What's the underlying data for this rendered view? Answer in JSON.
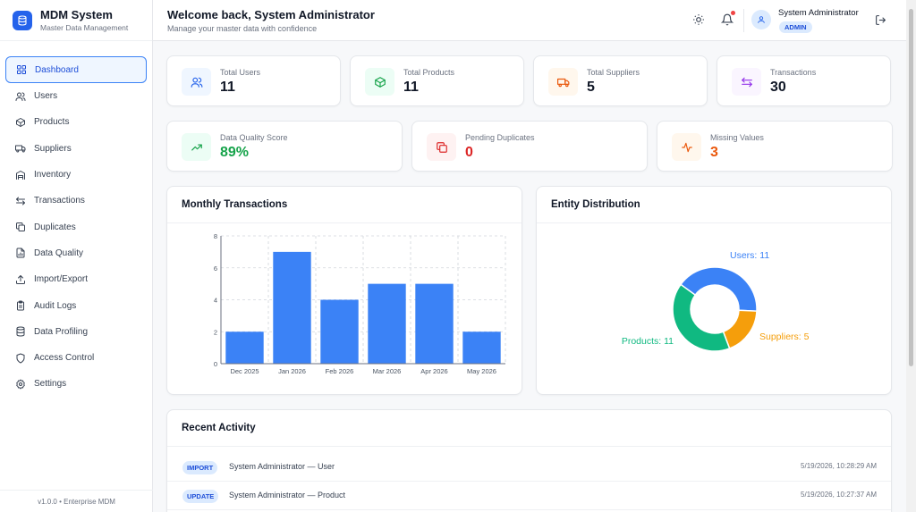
{
  "brand": {
    "title": "MDM System",
    "subtitle": "Master Data Management"
  },
  "nav": [
    {
      "label": "Dashboard",
      "icon": "grid-icon",
      "active": true
    },
    {
      "label": "Users",
      "icon": "users-icon"
    },
    {
      "label": "Products",
      "icon": "box-icon"
    },
    {
      "label": "Suppliers",
      "icon": "truck-icon"
    },
    {
      "label": "Inventory",
      "icon": "warehouse-icon"
    },
    {
      "label": "Transactions",
      "icon": "arrows-icon"
    },
    {
      "label": "Duplicates",
      "icon": "copy-icon"
    },
    {
      "label": "Data Quality",
      "icon": "file-chart-icon"
    },
    {
      "label": "Import/Export",
      "icon": "upload-icon"
    },
    {
      "label": "Audit Logs",
      "icon": "clipboard-icon"
    },
    {
      "label": "Data Profiling",
      "icon": "database-icon"
    },
    {
      "label": "Access Control",
      "icon": "shield-icon"
    },
    {
      "label": "Settings",
      "icon": "gear-icon"
    }
  ],
  "version": "v1.0.0 • Enterprise MDM",
  "header": {
    "title": "Welcome back, System Administrator",
    "subtitle": "Manage your master data with confidence",
    "user_name": "System Administrator",
    "role": "ADMIN"
  },
  "stats_row1": [
    {
      "label": "Total Users",
      "value": "11",
      "icon": "users-icon",
      "color": "#2563eb",
      "bg": "#eff6ff"
    },
    {
      "label": "Total Products",
      "value": "11",
      "icon": "box-icon",
      "color": "#16a34a",
      "bg": "#ecfdf5"
    },
    {
      "label": "Total Suppliers",
      "value": "5",
      "icon": "truck-icon",
      "color": "#ea580c",
      "bg": "#fff7ed"
    },
    {
      "label": "Transactions",
      "value": "30",
      "icon": "arrows-icon",
      "color": "#9333ea",
      "bg": "#faf5ff"
    }
  ],
  "stats_row2": [
    {
      "label": "Data Quality Score",
      "value": "89%",
      "icon": "trend-up-icon",
      "color": "#16a34a",
      "bg": "#ecfdf5",
      "value_color": "#16a34a"
    },
    {
      "label": "Pending Duplicates",
      "value": "0",
      "icon": "copy-icon",
      "color": "#dc2626",
      "bg": "#fef2f2",
      "value_color": "#dc2626"
    },
    {
      "label": "Missing Values",
      "value": "3",
      "icon": "activity-icon",
      "color": "#ea580c",
      "bg": "#fff7ed",
      "value_color": "#ea580c"
    }
  ],
  "monthly": {
    "title": "Monthly Transactions"
  },
  "distribution": {
    "title": "Entity Distribution"
  },
  "activity": {
    "title": "Recent Activity",
    "rows": [
      {
        "action": "IMPORT",
        "text": "System Administrator — User",
        "time": "5/19/2026, 10:28:29 AM"
      },
      {
        "action": "UPDATE",
        "text": "System Administrator — Product",
        "time": "5/19/2026, 10:27:37 AM"
      }
    ]
  },
  "chart_data": [
    {
      "type": "bar",
      "categories": [
        "Dec 2025",
        "Jan 2026",
        "Feb 2026",
        "Mar 2026",
        "Apr 2026",
        "May 2026"
      ],
      "values": [
        2,
        7,
        4,
        5,
        5,
        2
      ],
      "ylim": [
        0,
        8
      ],
      "yticks": [
        0,
        2,
        4,
        6,
        8
      ],
      "color": "#3b82f6",
      "grid": true
    },
    {
      "type": "pie",
      "donut": true,
      "labels": [
        "Users: 11",
        "Suppliers: 5",
        "Products: 11"
      ],
      "values": [
        11,
        5,
        11
      ],
      "colors": [
        "#3b82f6",
        "#f59e0b",
        "#10b981"
      ]
    }
  ]
}
